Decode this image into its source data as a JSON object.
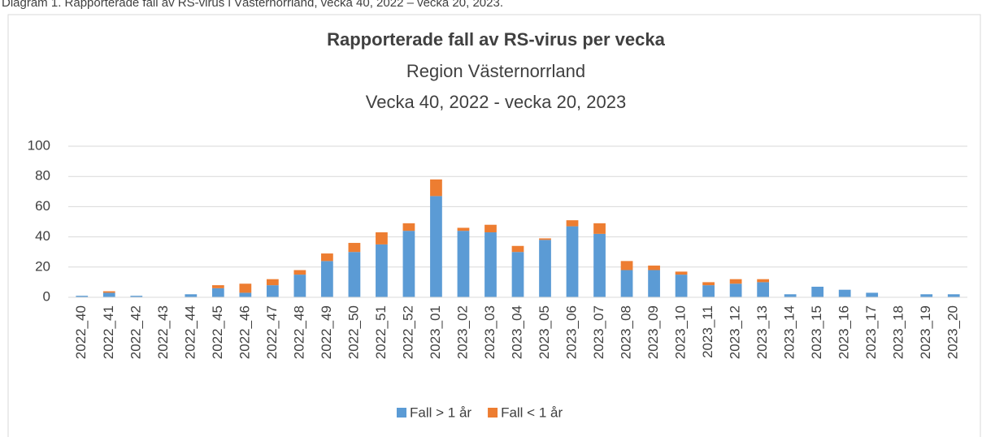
{
  "caption": "Diagram 1. Rapporterade fall av RS-virus i Västernorrland, vecka 40, 2022 – vecka 20, 2023.",
  "chart_data": {
    "type": "stacked_bar",
    "title": "Rapporterade fall av RS-virus per vecka",
    "subtitle": [
      "Region Västernorrland",
      "Vecka 40, 2022 - vecka 20, 2023"
    ],
    "categories": [
      "2022_40",
      "2022_41",
      "2022_42",
      "2022_43",
      "2022_44",
      "2022_45",
      "2022_46",
      "2022_47",
      "2022_48",
      "2022_49",
      "2022_50",
      "2022_51",
      "2022_52",
      "2023_01",
      "2023_02",
      "2023_03",
      "2023_04",
      "2023_05",
      "2023_06",
      "2023_07",
      "2023_08",
      "2023_09",
      "2023_10",
      "2023_11",
      "2023_12",
      "2023_13",
      "2023_14",
      "2023_15",
      "2023_16",
      "2023_17",
      "2023_18",
      "2023_19",
      "2023_20"
    ],
    "series": [
      {
        "name": "Fall > 1 år",
        "color": "#5b9bd5",
        "values": [
          1,
          3,
          1,
          0,
          2,
          6,
          3,
          8,
          15,
          24,
          30,
          35,
          44,
          67,
          44,
          43,
          30,
          38,
          47,
          42,
          18,
          18,
          15,
          8,
          9,
          10,
          2,
          7,
          5,
          3,
          0,
          2,
          2
        ]
      },
      {
        "name": "Fall < 1 år",
        "color": "#ed7d31",
        "values": [
          0,
          1,
          0,
          0,
          0,
          2,
          6,
          4,
          3,
          5,
          6,
          8,
          5,
          11,
          2,
          5,
          4,
          1,
          4,
          7,
          6,
          3,
          2,
          2,
          3,
          2,
          0,
          0,
          0,
          0,
          0,
          0,
          0
        ]
      }
    ],
    "ylim": [
      0,
      100
    ],
    "yticks": [
      0,
      20,
      40,
      60,
      80,
      100
    ],
    "grid": true,
    "legend": "bottom"
  }
}
